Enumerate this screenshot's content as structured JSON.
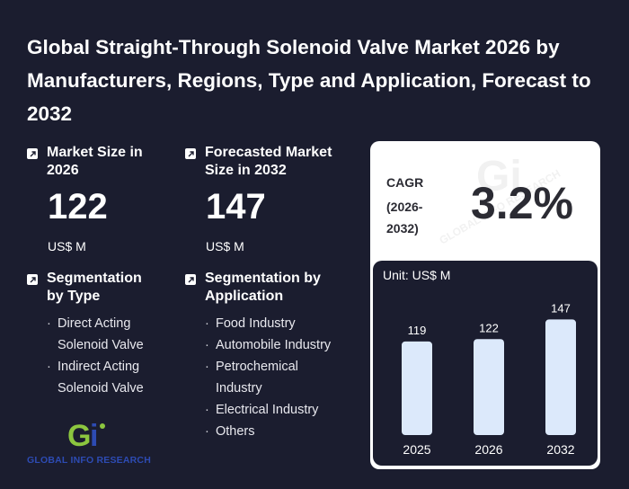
{
  "title": "Global Straight-Through Solenoid Valve Market 2026 by Manufacturers, Regions, Type and Application, Forecast to 2032",
  "market_size": {
    "label": "Market Size in 2026",
    "value": "122",
    "unit": "US$ M"
  },
  "forecast": {
    "label": "Forecasted Market Size in 2032",
    "value": "147",
    "unit": "US$ M"
  },
  "segmentation_type": {
    "label": "Segmentation by Type",
    "items": [
      "Direct Acting Solenoid Valve",
      "Indirect Acting Solenoid Valve"
    ]
  },
  "segmentation_application": {
    "label": "Segmentation by Application",
    "items": [
      "Food Industry",
      "Automobile Industry",
      "Petrochemical Industry",
      "Electrical Industry",
      "Others"
    ]
  },
  "cagr": {
    "label_line1": "CAGR",
    "label_line2": "(2026-",
    "label_line3": "2032)",
    "value": "3.2%"
  },
  "chart_data": {
    "type": "bar",
    "title": "",
    "unit_label": "Unit: US$ M",
    "categories": [
      "2025",
      "2026",
      "2032"
    ],
    "values": [
      119,
      122,
      147
    ],
    "ylim": [
      0,
      160
    ],
    "bar_color": "#dce9fb"
  },
  "logo": {
    "text": "GLOBAL INFO RESEARCH",
    "mark": "Gi"
  },
  "colors": {
    "background": "#1b1d2f",
    "card": "#ffffff",
    "accent_green": "#8cc63f",
    "accent_blue": "#2d4bb3"
  }
}
